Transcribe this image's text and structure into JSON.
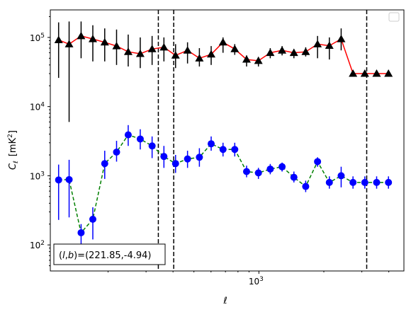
{
  "chart_data": {
    "type": "scatter",
    "xscale": "log",
    "yscale": "log",
    "xlim": [
      108,
      4700
    ],
    "ylim": [
      42,
      250000
    ],
    "xlabel": "ℓ",
    "ylabel_main": "C",
    "ylabel_sub": "ℓ",
    "ylabel_unit": "[mK",
    "ylabel_unit_sup": "2",
    "ylabel_unit_end": "]",
    "x_major_ticks": [
      {
        "value": 1000,
        "base": "10",
        "exp": "3"
      }
    ],
    "y_major_ticks": [
      {
        "value": 100,
        "base": "10",
        "exp": "2"
      },
      {
        "value": 1000,
        "base": "10",
        "exp": "3"
      },
      {
        "value": 10000,
        "base": "10",
        "exp": "4"
      },
      {
        "value": 100000,
        "base": "10",
        "exp": "5"
      }
    ],
    "vlines": [
      342,
      403,
      3160
    ],
    "legend": "upper right (empty)",
    "annotation": "(l, b)=(221.85,-4.94)",
    "annotation_parts": {
      "open": "(",
      "l": "l",
      "comma": ",",
      "b": "b",
      "rest": ")=(221.85,-4.94)"
    },
    "series": [
      {
        "marker": "triangle",
        "color": "#000000",
        "line_color": "#ff0000",
        "line_style": "solid",
        "x": [
          118,
          132,
          150,
          170,
          193,
          219,
          248,
          282,
          320,
          363,
          411,
          467,
          530,
          601,
          682,
          773,
          877,
          995,
          1129,
          1281,
          1453,
          1648,
          1870,
          2121,
          2406,
          2730,
          3097,
          3513,
          3986
        ],
        "y": [
          92000,
          80000,
          105000,
          95000,
          85000,
          75000,
          62000,
          58000,
          68000,
          72000,
          55000,
          65000,
          50000,
          57000,
          85000,
          68000,
          48000,
          46000,
          60000,
          65000,
          60000,
          62000,
          80000,
          76000,
          95000,
          30000,
          30000,
          30000,
          30000
        ],
        "yerr_low": [
          26000,
          6000,
          50000,
          45000,
          45000,
          40000,
          38000,
          36000,
          40000,
          45000,
          36000,
          42000,
          38000,
          40000,
          60000,
          56000,
          38000,
          38000,
          50000,
          55000,
          50000,
          53000,
          50000,
          48000,
          65000,
          30000,
          30000,
          30000,
          30000
        ],
        "yerr_high": [
          165000,
          170000,
          170000,
          150000,
          135000,
          130000,
          110000,
          100000,
          105000,
          100000,
          80000,
          85000,
          70000,
          75000,
          100000,
          80000,
          55000,
          52000,
          70000,
          75000,
          68000,
          72000,
          105000,
          100000,
          135000,
          30000,
          30000,
          30000,
          30000
        ]
      },
      {
        "marker": "circle",
        "color": "#0000ff",
        "line_color": "#008000",
        "line_style": "dashed",
        "x": [
          118,
          132,
          150,
          170,
          193,
          219,
          248,
          282,
          320,
          363,
          411,
          467,
          530,
          601,
          682,
          773,
          877,
          995,
          1129,
          1281,
          1453,
          1648,
          1870,
          2121,
          2406,
          2730,
          3097,
          3513,
          3986
        ],
        "y": [
          870,
          880,
          150,
          235,
          1500,
          2200,
          3900,
          3400,
          2700,
          1900,
          1500,
          1750,
          1850,
          2900,
          2400,
          2400,
          1150,
          1100,
          1250,
          1350,
          950,
          700,
          1600,
          800,
          1000,
          800,
          800,
          800,
          800
        ],
        "yerr_low": [
          230,
          250,
          100,
          120,
          900,
          1600,
          2700,
          2400,
          1800,
          1300,
          1100,
          1300,
          1350,
          2300,
          1900,
          1900,
          950,
          900,
          1050,
          1150,
          800,
          580,
          1350,
          650,
          680,
          650,
          650,
          650,
          650
        ],
        "yerr_high": [
          1450,
          1700,
          200,
          350,
          2300,
          3200,
          5400,
          4700,
          3700,
          2700,
          2000,
          2300,
          2500,
          3700,
          3000,
          3000,
          1400,
          1300,
          1480,
          1550,
          1150,
          850,
          1850,
          980,
          1350,
          980,
          980,
          980,
          980
        ]
      }
    ]
  }
}
